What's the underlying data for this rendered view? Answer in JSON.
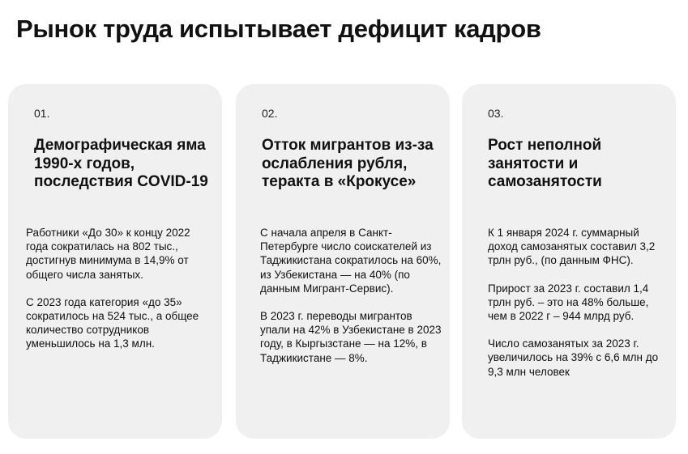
{
  "page": {
    "title": "Рынок труда испытывает дефицит кадров"
  },
  "cards": [
    {
      "number": "01.",
      "heading": "Демографическая яма 1990-х годов, последствия COVID-19",
      "paragraphs": [
        "Работники «До 30» к концу 2022 года сократилась на 802 тыс., достигнув минимума в 14,9% от общего числа занятых.",
        "С 2023 года категория «до 35» сократилось на 524 тыс., а общее количество сотрудников уменьшилось на 1,3 млн."
      ]
    },
    {
      "number": "02.",
      "heading": "Отток мигрантов из-за ослабления рубля, теракта в «Крокусе»",
      "paragraphs": [
        "С начала апреля в Санкт-Петербурге число соискателей из Таджикистана сократилось на 60%, из Узбекистана — на 40% (по данным Мигрант-Сервис).",
        "В 2023 г. переводы мигрантов упали на 42% в Узбекистане в 2023 году, в Кыргызстане — на 12%, в Таджикистане — 8%."
      ]
    },
    {
      "number": "03.",
      "heading": "Рост неполной занятости и самозанятости",
      "paragraphs": [
        "К 1 января 2024 г. суммарный доход самозанятых составил 3,2 трлн руб., (по данным ФНС).",
        "Прирост за 2023 г. составил 1,4 трлн руб. – это на 48% больше, чем в 2022 г – 944 млрд руб.",
        "Число самозанятых за 2023 г. увеличилось на 39% с 6,6 млн до 9,3 млн человек"
      ]
    }
  ]
}
